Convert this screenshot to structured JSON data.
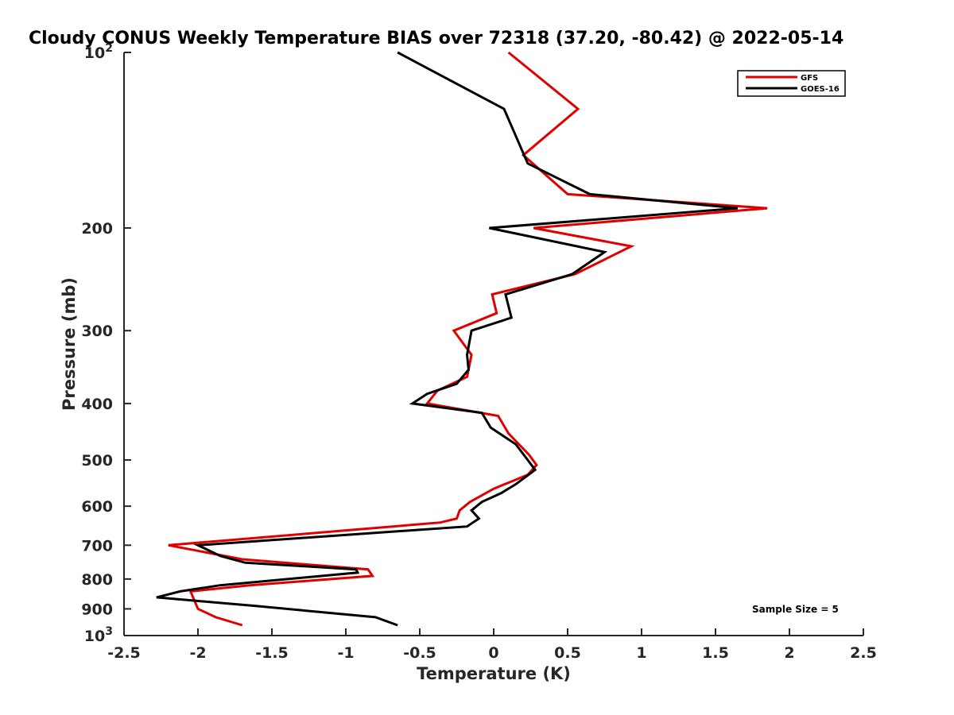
{
  "chart_data": {
    "type": "line",
    "title": "Cloudy CONUS Weekly Temperature BIAS over 72318 (37.20, -80.42) @ 2022-05-14",
    "xlabel": "Temperature (K)",
    "ylabel": "Pressure (mb)",
    "xlim": [
      -2.5,
      2.5
    ],
    "ylim": [
      100,
      1000
    ],
    "yscale": "log",
    "y_reversed": true,
    "grid": false,
    "legend_position": "top-right",
    "x_ticks": [
      "-2.5",
      "-2",
      "-1.5",
      "-1",
      "-0.5",
      "0",
      "0.5",
      "1",
      "1.5",
      "2",
      "2.5"
    ],
    "x_tick_values": [
      -2.5,
      -2,
      -1.5,
      -1,
      -0.5,
      0,
      0.5,
      1,
      1.5,
      2,
      2.5
    ],
    "y_ticks": [
      {
        "value": 100,
        "base": "10",
        "exp": "2"
      },
      {
        "value": 200,
        "label": "200"
      },
      {
        "value": 300,
        "label": "300"
      },
      {
        "value": 400,
        "label": "400"
      },
      {
        "value": 500,
        "label": "500"
      },
      {
        "value": 600,
        "label": "600"
      },
      {
        "value": 700,
        "label": "700"
      },
      {
        "value": 800,
        "label": "800"
      },
      {
        "value": 900,
        "label": "900"
      },
      {
        "value": 1000,
        "base": "10",
        "exp": "3"
      }
    ],
    "annotation": "Sample Size = 5",
    "series": [
      {
        "name": "GFS",
        "color": "#e00000",
        "points": [
          [
            0.1,
            100
          ],
          [
            0.57,
            125
          ],
          [
            0.2,
            150
          ],
          [
            0.5,
            175
          ],
          [
            1.85,
            185
          ],
          [
            0.27,
            200
          ],
          [
            0.93,
            215
          ],
          [
            0.55,
            240
          ],
          [
            -0.01,
            260
          ],
          [
            0.02,
            280
          ],
          [
            -0.27,
            300
          ],
          [
            -0.15,
            330
          ],
          [
            -0.18,
            360
          ],
          [
            -0.38,
            380
          ],
          [
            -0.45,
            400
          ],
          [
            0.03,
            420
          ],
          [
            0.1,
            450
          ],
          [
            0.24,
            490
          ],
          [
            0.29,
            510
          ],
          [
            0.23,
            530
          ],
          [
            0.0,
            560
          ],
          [
            -0.16,
            590
          ],
          [
            -0.23,
            610
          ],
          [
            -0.25,
            630
          ],
          [
            -0.36,
            640
          ],
          [
            -2.2,
            700
          ],
          [
            -1.7,
            740
          ],
          [
            -0.85,
            770
          ],
          [
            -0.82,
            790
          ],
          [
            -1.65,
            820
          ],
          [
            -2.05,
            840
          ],
          [
            -2.0,
            900
          ],
          [
            -1.88,
            930
          ],
          [
            -1.7,
            960
          ]
        ]
      },
      {
        "name": "GOES-16",
        "color": "#000000",
        "points": [
          [
            -0.65,
            100
          ],
          [
            0.07,
            125
          ],
          [
            0.23,
            155
          ],
          [
            0.65,
            175
          ],
          [
            1.65,
            185
          ],
          [
            -0.03,
            200
          ],
          [
            0.75,
            220
          ],
          [
            0.53,
            240
          ],
          [
            0.08,
            260
          ],
          [
            0.12,
            285
          ],
          [
            -0.15,
            300
          ],
          [
            -0.18,
            330
          ],
          [
            -0.17,
            350
          ],
          [
            -0.25,
            370
          ],
          [
            -0.45,
            385
          ],
          [
            -0.55,
            400
          ],
          [
            -0.08,
            415
          ],
          [
            -0.02,
            440
          ],
          [
            0.15,
            470
          ],
          [
            0.23,
            500
          ],
          [
            0.28,
            520
          ],
          [
            0.15,
            550
          ],
          [
            0.05,
            570
          ],
          [
            -0.08,
            590
          ],
          [
            -0.15,
            610
          ],
          [
            -0.1,
            630
          ],
          [
            -0.18,
            650
          ],
          [
            -2.0,
            700
          ],
          [
            -1.85,
            730
          ],
          [
            -1.68,
            750
          ],
          [
            -0.93,
            770
          ],
          [
            -0.92,
            780
          ],
          [
            -1.85,
            820
          ],
          [
            -2.12,
            840
          ],
          [
            -2.28,
            860
          ],
          [
            -1.6,
            890
          ],
          [
            -0.8,
            930
          ],
          [
            -0.65,
            960
          ]
        ]
      }
    ]
  }
}
